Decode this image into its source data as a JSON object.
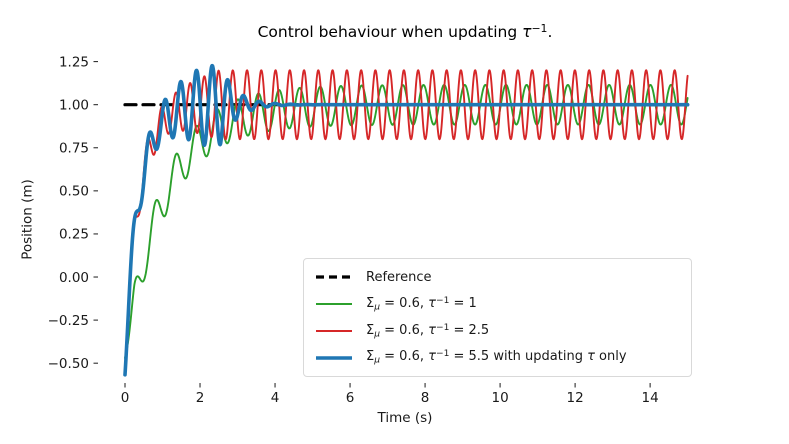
{
  "figure": {
    "background": "#ffffff",
    "title_plain": "Control behaviour when updating τ⁻¹.",
    "title_parts": [
      {
        "t": "Control behaviour when updating "
      },
      {
        "t": "τ",
        "i": true
      },
      {
        "t": "−1",
        "sup": true
      },
      {
        "t": "."
      }
    ],
    "legend_border_color": "#d9d9d9",
    "text_color": "#1a1a1a"
  },
  "chart_data": {
    "type": "line",
    "title": "Control behaviour when updating τ⁻¹.",
    "xlabel": "Time (s)",
    "ylabel": "Position (m)",
    "xlim": [
      -0.72,
      15.65
    ],
    "ylim": [
      -0.615,
      1.3
    ],
    "grid": false,
    "spines": "none",
    "legend_position": "lower right",
    "time_range": [
      0,
      15
    ],
    "sample_dt": 0.008,
    "xticks": [
      {
        "v": 0,
        "label": "0"
      },
      {
        "v": 2,
        "label": "2"
      },
      {
        "v": 4,
        "label": "4"
      },
      {
        "v": 6,
        "label": "6"
      },
      {
        "v": 8,
        "label": "8"
      },
      {
        "v": 10,
        "label": "10"
      },
      {
        "v": 12,
        "label": "12"
      },
      {
        "v": 14,
        "label": "14"
      }
    ],
    "yticks": [
      {
        "v": 1.25,
        "label": "1.25"
      },
      {
        "v": 1.0,
        "label": "1.00"
      },
      {
        "v": 0.75,
        "label": "0.75"
      },
      {
        "v": 0.5,
        "label": "0.50"
      },
      {
        "v": 0.25,
        "label": "0.25"
      },
      {
        "v": 0.0,
        "label": "0.00"
      },
      {
        "v": -0.25,
        "label": "−0.25"
      },
      {
        "v": -0.5,
        "label": "−0.50"
      }
    ],
    "series": [
      {
        "name": "reference",
        "label_parts": [
          {
            "t": "Reference"
          }
        ],
        "color": "#000000",
        "width": 3.2,
        "dash": [
          11,
          7
        ],
        "model": {
          "kind": "constant",
          "value": 1.0
        },
        "description": "constant reference position 1.0 m from t=0 to t=15"
      },
      {
        "name": "sigma-mu-0.6-tau-inv-1",
        "label_parts": [
          {
            "t": "Σ"
          },
          {
            "t": "μ",
            "sub": true,
            "i": true
          },
          {
            "t": " = 0.6, "
          },
          {
            "t": "τ",
            "i": true
          },
          {
            "t": "−1",
            "sup": true
          },
          {
            "t": " = 1"
          }
        ],
        "color": "#2ca02c",
        "width": 1.9,
        "dash": null,
        "model": {
          "kind": "oscillating_rise",
          "settle": 1.0,
          "rise_depth": 1.47,
          "rise_tau": 1.05,
          "period": 0.55,
          "phase_shift": 0.12,
          "amp_keys": [
            [
              0,
              0.0
            ],
            [
              0.25,
              0.115
            ],
            [
              15,
              0.115
            ]
          ],
          "decay_after": null,
          "decay_tau": null
        },
        "steady_state": {
          "center": 1.0,
          "amplitude": 0.115,
          "period_s": 0.55
        },
        "start_value": -0.5,
        "description": "slow rise from -0.5, sustained oscillation ~0.89 to ~1.11 m"
      },
      {
        "name": "sigma-mu-0.6-tau-inv-2.5",
        "label_parts": [
          {
            "t": "Σ"
          },
          {
            "t": "μ",
            "sub": true,
            "i": true
          },
          {
            "t": " = 0.6, "
          },
          {
            "t": "τ",
            "i": true
          },
          {
            "t": "−1",
            "sup": true
          },
          {
            "t": " = 2.5"
          }
        ],
        "color": "#d62728",
        "width": 1.9,
        "dash": null,
        "model": {
          "kind": "oscillating_rise",
          "settle": 1.0,
          "rise_depth": 1.47,
          "rise_tau": 0.38,
          "period": 0.38,
          "phase_shift": 0.12,
          "amp_keys": [
            [
              0,
              0.1
            ],
            [
              1.2,
              0.1
            ],
            [
              2.5,
              0.2
            ],
            [
              15,
              0.2
            ]
          ],
          "decay_after": null,
          "decay_tau": null
        },
        "steady_state": {
          "center": 1.0,
          "amplitude": 0.2,
          "period_s": 0.38
        },
        "start_value": -0.5,
        "description": "fast rise from -0.5, sustained oscillation ~0.80 to ~1.20 m"
      },
      {
        "name": "sigma-mu-0.6-tau-inv-5.5-updating-tau-only",
        "label_parts": [
          {
            "t": "Σ"
          },
          {
            "t": "μ",
            "sub": true,
            "i": true
          },
          {
            "t": " = 0.6, "
          },
          {
            "t": "τ",
            "i": true
          },
          {
            "t": "−1",
            "sup": true
          },
          {
            "t": " = 5.5 with updating "
          },
          {
            "t": "τ",
            "i": true
          },
          {
            "t": " only"
          }
        ],
        "color": "#1f77b4",
        "width": 3.6,
        "dash": null,
        "model": {
          "kind": "oscillating_rise",
          "settle": 1.0,
          "rise_depth": 1.47,
          "rise_tau": 0.38,
          "period": 0.42,
          "phase_shift": 0.12,
          "amp_keys": [
            [
              0,
              0.1
            ],
            [
              0.9,
              0.1
            ],
            [
              2.1,
              0.23
            ],
            [
              2.55,
              0.23
            ]
          ],
          "decay_after": 2.55,
          "decay_tau": 0.42
        },
        "steady_state": {
          "center": 1.0,
          "amplitude": 0.0,
          "settles_by_s": 4.5
        },
        "start_value": -0.5,
        "description": "fast rise from -0.5, rings up to ~1.25 until t≈2.6 then damps and holds 1.0 m"
      }
    ]
  }
}
